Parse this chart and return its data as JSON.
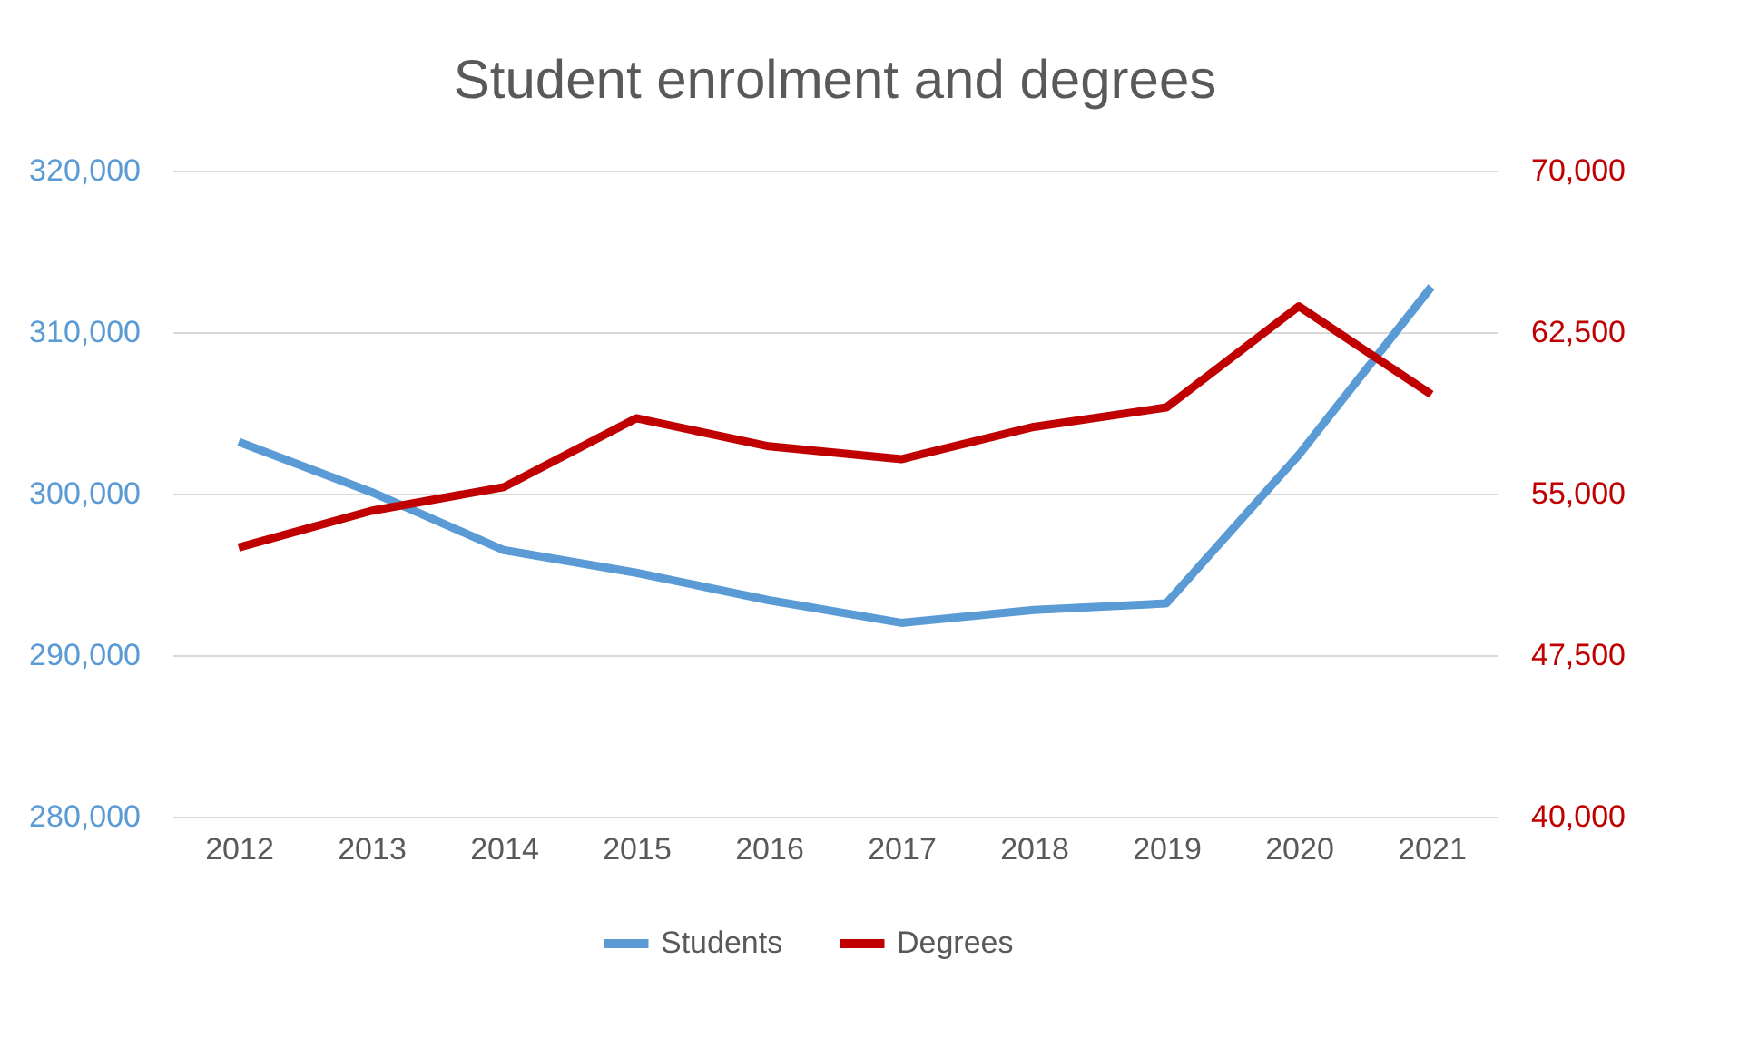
{
  "chart_data": {
    "type": "line",
    "title": "Student enrolment and degrees",
    "categories": [
      "2012",
      "2013",
      "2014",
      "2015",
      "2016",
      "2017",
      "2018",
      "2019",
      "2020",
      "2021"
    ],
    "series": [
      {
        "name": "Students",
        "color": "#5b9bd5",
        "values": [
          303200,
          300100,
          296500,
          295100,
          293400,
          292000,
          292800,
          293200,
          302400,
          312800
        ]
      },
      {
        "name": "Degrees",
        "color": "#c00000",
        "axis": "y2",
        "values": [
          52500,
          54200,
          55300,
          58500,
          57200,
          56600,
          58100,
          59000,
          63700,
          59600
        ]
      }
    ],
    "ylim": [
      280000,
      320000
    ],
    "yticks": [
      {
        "value": 280000,
        "label": "280,000"
      },
      {
        "value": 290000,
        "label": "290,000"
      },
      {
        "value": 300000,
        "label": "300,000"
      },
      {
        "value": 310000,
        "label": "310,000"
      },
      {
        "value": 320000,
        "label": "320,000"
      }
    ],
    "y2lim": [
      40000,
      70000
    ],
    "y2ticks": [
      {
        "value": 40000,
        "label": "40,000"
      },
      {
        "value": 47500,
        "label": "47,500"
      },
      {
        "value": 55000,
        "label": "55,000"
      },
      {
        "value": 62500,
        "label": "62,500"
      },
      {
        "value": 70000,
        "label": "70,000"
      }
    ],
    "grid": "y",
    "legend": "bottom",
    "marker": "none",
    "line_style": "solid"
  }
}
